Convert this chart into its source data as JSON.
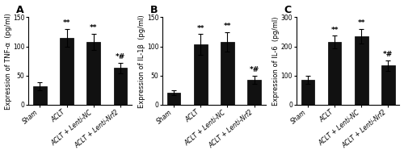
{
  "panels": [
    {
      "label": "A",
      "ylabel": "Expression of TNF-α  (pg/ml)",
      "ylim": [
        0,
        150
      ],
      "yticks": [
        0,
        50,
        100,
        150
      ],
      "values": [
        32,
        115,
        108,
        63
      ],
      "errors": [
        7,
        15,
        14,
        9
      ],
      "annotations": [
        "",
        "**",
        "**",
        "*#"
      ]
    },
    {
      "label": "B",
      "ylabel": "Expression of IL-1β  (pg/ml)",
      "ylim": [
        0,
        150
      ],
      "yticks": [
        0,
        50,
        100,
        150
      ],
      "values": [
        20,
        103,
        108,
        43
      ],
      "errors": [
        4,
        18,
        17,
        7
      ],
      "annotations": [
        "",
        "**",
        "**",
        "*#"
      ]
    },
    {
      "label": "C",
      "ylabel": "Expression of IL-6  (pg/ml)",
      "ylim": [
        0,
        300
      ],
      "yticks": [
        0,
        100,
        200,
        300
      ],
      "values": [
        85,
        215,
        235,
        135
      ],
      "errors": [
        13,
        22,
        25,
        18
      ],
      "annotations": [
        "",
        "**",
        "**",
        "*#"
      ]
    }
  ],
  "categories": [
    "Sham",
    "ACLT",
    "ACLT + Lenti-NC",
    "ACLT + Lenti-Nrf2"
  ],
  "bar_color": "#111111",
  "bar_width": 0.5,
  "bar_edge_color": "#000000",
  "error_color": "#000000",
  "annotation_fontsize": 6.5,
  "ylabel_fontsize": 6.0,
  "tick_fontsize": 5.5,
  "panel_label_fontsize": 9
}
